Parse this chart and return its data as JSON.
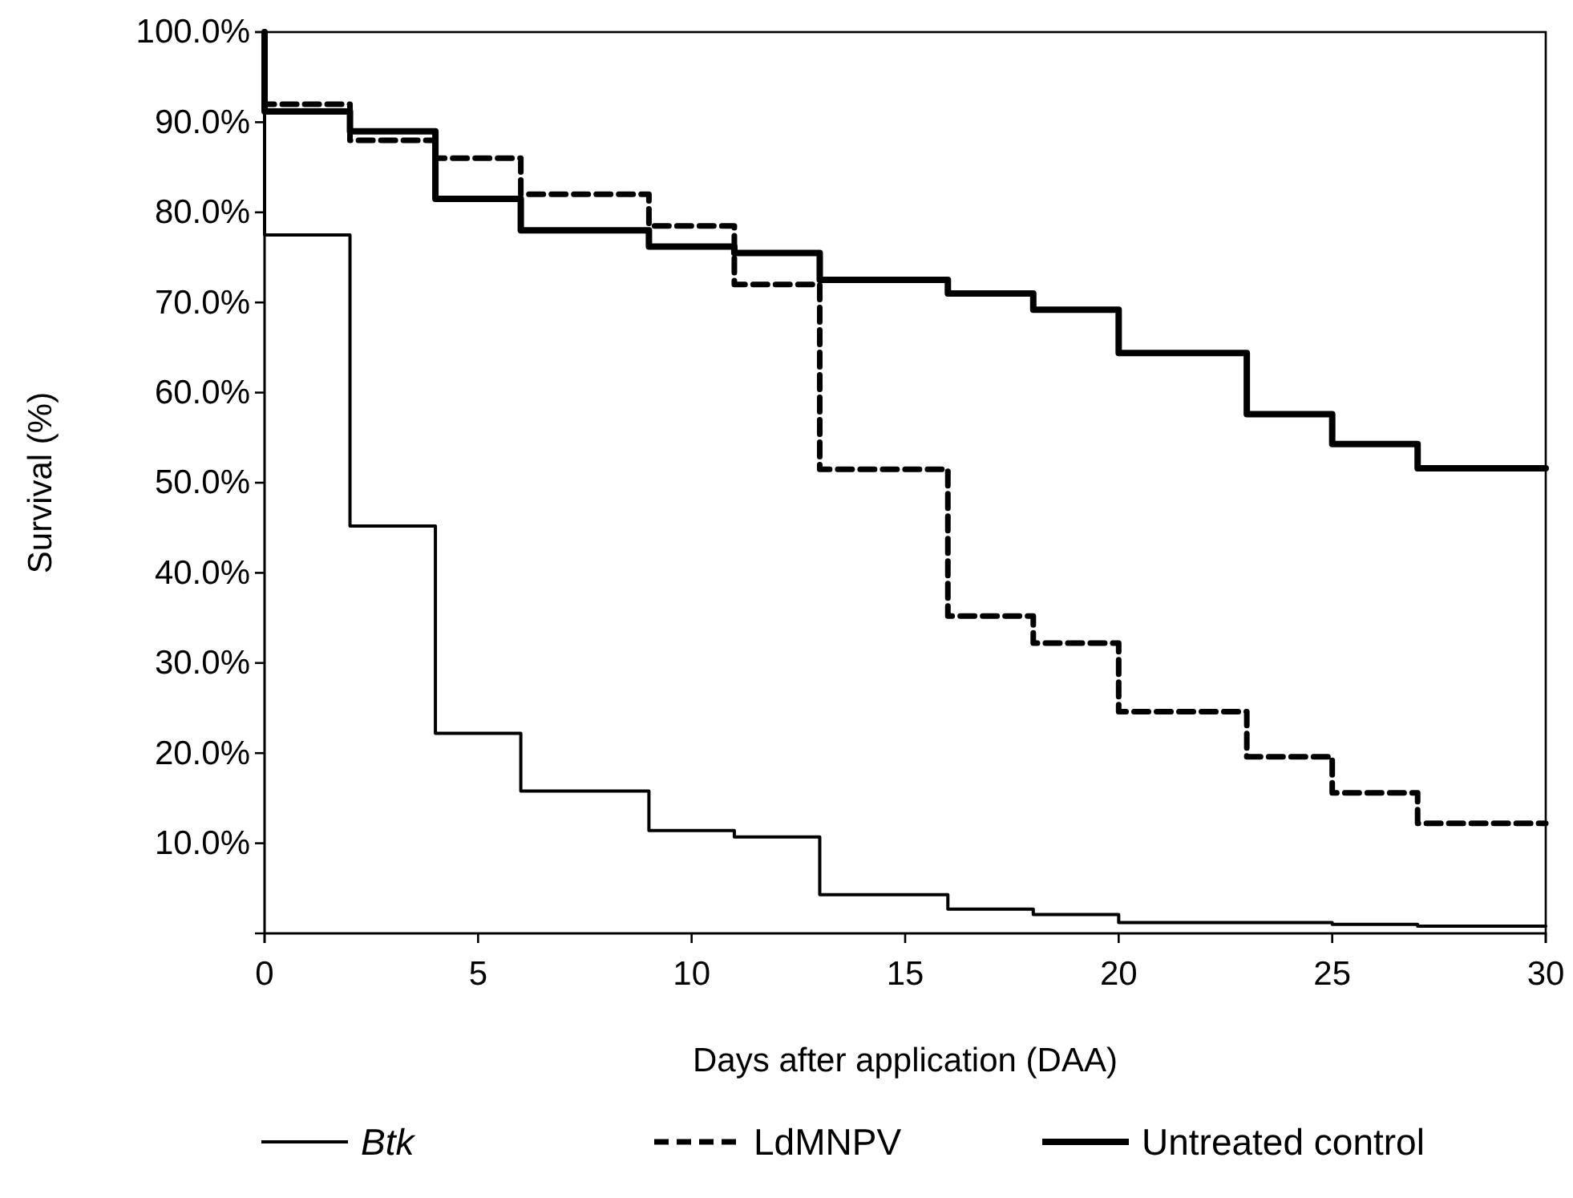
{
  "chart_data": {
    "type": "step",
    "xlabel": "Days after application (DAA)",
    "ylabel": "Survival (%)",
    "xlim": [
      0,
      30
    ],
    "xticks": [
      0,
      5,
      10,
      15,
      20,
      25,
      30
    ],
    "ylim": [
      0,
      100
    ],
    "yticks": [
      {
        "value": 10,
        "label": "10.0%"
      },
      {
        "value": 20,
        "label": "20.0%"
      },
      {
        "value": 30,
        "label": "30.0%"
      },
      {
        "value": 40,
        "label": "40.0%"
      },
      {
        "value": 50,
        "label": "50.0%"
      },
      {
        "value": 60,
        "label": "60.0%"
      },
      {
        "value": 70,
        "label": "70.0%"
      },
      {
        "value": 80,
        "label": "80.0%"
      },
      {
        "value": 90,
        "label": "90.0%"
      },
      {
        "value": 100,
        "label": "100.0%"
      }
    ],
    "grid": false,
    "legend": "bottom",
    "marker": "none",
    "series": [
      {
        "name": "Btk",
        "color": "#000000",
        "line_style": "solid",
        "x": [
          0,
          0,
          2,
          4,
          6,
          9,
          11,
          13,
          16,
          18,
          20,
          25,
          27,
          30
        ],
        "values": [
          100,
          77.5,
          45.2,
          22.2,
          15.8,
          11.4,
          10.7,
          4.3,
          2.7,
          2.1,
          1.2,
          1.0,
          0.8,
          0.8
        ]
      },
      {
        "name": "LdMNPV",
        "color": "#000000",
        "line_style": "dashed",
        "x": [
          0,
          0,
          2,
          4,
          6,
          9,
          11,
          13,
          16,
          18,
          20,
          23,
          25,
          27,
          30
        ],
        "values": [
          100,
          92,
          88,
          86,
          82,
          78.5,
          72,
          51.5,
          35.2,
          32.2,
          24.6,
          19.6,
          15.6,
          12.2,
          12.2
        ]
      },
      {
        "name": "Untreated control",
        "color": "#000000",
        "line_style": "solid",
        "x": [
          0,
          0,
          2,
          4,
          6,
          9,
          11,
          13,
          16,
          18,
          20,
          23,
          25,
          27,
          30
        ],
        "values": [
          100,
          91.2,
          89,
          81.5,
          78,
          76.2,
          75.5,
          72.5,
          71,
          69.2,
          64.4,
          57.6,
          54.3,
          51.6,
          51.6
        ]
      }
    ]
  }
}
